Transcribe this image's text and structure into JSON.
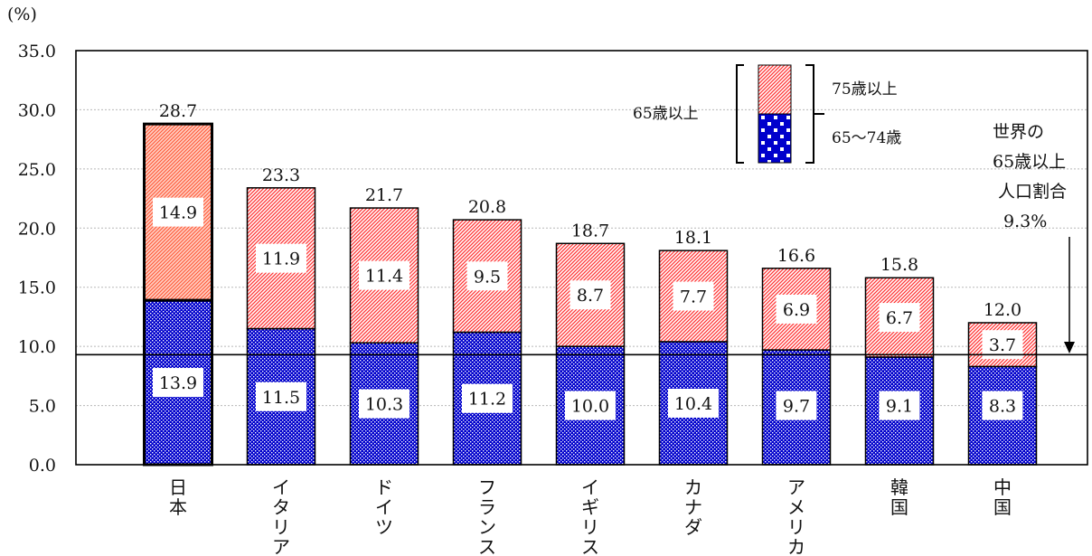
{
  "chart_data": {
    "type": "bar",
    "stacked": true,
    "y_unit_label": "(%)",
    "ylim": [
      0,
      35
    ],
    "yticks": [
      "0.0",
      "5.0",
      "10.0",
      "15.0",
      "20.0",
      "25.0",
      "30.0",
      "35.0"
    ],
    "grid": true,
    "categories": [
      "日本",
      "イタリア",
      "ドイツ",
      "フランス",
      "イギリス",
      "カナダ",
      "アメリカ",
      "韓国",
      "中国"
    ],
    "series": [
      {
        "name": "65～74歳",
        "values": [
          13.9,
          11.5,
          10.3,
          11.2,
          10.0,
          10.4,
          9.7,
          9.1,
          8.3
        ],
        "color": "#0000cc"
      },
      {
        "name": "75歳以上",
        "values": [
          14.9,
          11.9,
          11.4,
          9.5,
          8.7,
          7.7,
          6.9,
          6.7,
          3.7
        ],
        "color": "#ff3333"
      }
    ],
    "totals": [
      "28.7",
      "23.3",
      "21.7",
      "20.8",
      "18.7",
      "18.1",
      "16.6",
      "15.8",
      "12.0"
    ],
    "labels_lower": [
      "13.9",
      "11.5",
      "10.3",
      "11.2",
      "10.0",
      "10.4",
      "9.7",
      "9.1",
      "8.3"
    ],
    "labels_upper": [
      "14.9",
      "11.9",
      "11.4",
      "9.5",
      "8.7",
      "7.7",
      "6.9",
      "6.7",
      "3.7"
    ],
    "highlight_category": "日本",
    "legend": {
      "bracket_label": "65歳以上",
      "upper_label": "75歳以上",
      "lower_label": "65～74歳",
      "position": "top-right"
    },
    "reference_line": {
      "value": 9.3,
      "annotation_lines": [
        "世界の",
        "65歳以上",
        "人口割合",
        "9.3%"
      ]
    }
  }
}
